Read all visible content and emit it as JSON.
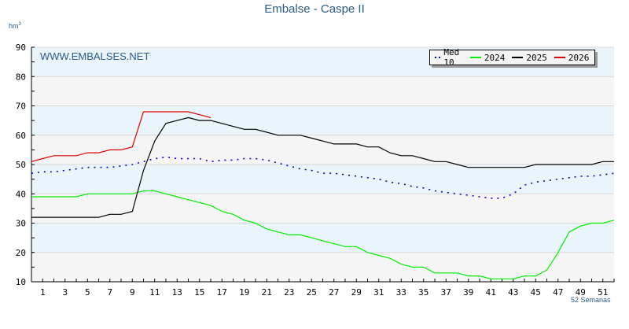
{
  "header": {
    "title": "Embalse - Caspe II",
    "unit_label": "hm",
    "unit_sup": "3"
  },
  "watermark": "WWW.EMBALSES.NET",
  "x_axis_label": "52 Semanas",
  "legend": {
    "items": [
      {
        "label": "Med 10",
        "color": "#0000cc",
        "style": "dotted"
      },
      {
        "label": "2024",
        "color": "#00ee00",
        "style": "solid"
      },
      {
        "label": "2025",
        "color": "#000000",
        "style": "solid"
      },
      {
        "label": "2026",
        "color": "#dd0000",
        "style": "solid"
      }
    ]
  },
  "colors": {
    "band_light_blue": "#e9f4fb",
    "band_light_gray": "#f5f5f5",
    "gridline": "#d8d8d8",
    "title_text": "#2a5b84"
  },
  "chart_data": {
    "type": "line",
    "title": "Embalse - Caspe II",
    "xlabel": "52 Semanas",
    "ylabel": "hm3",
    "ylim": [
      10,
      90
    ],
    "xlim": [
      0,
      52
    ],
    "yticks": [
      10,
      20,
      30,
      40,
      50,
      60,
      70,
      80,
      90
    ],
    "xticks": [
      1,
      3,
      5,
      7,
      9,
      11,
      13,
      15,
      17,
      19,
      21,
      23,
      25,
      27,
      29,
      31,
      33,
      35,
      37,
      39,
      41,
      43,
      45,
      47,
      49,
      51
    ],
    "grid": true,
    "legend_position": "top-right",
    "x": [
      0,
      1,
      2,
      3,
      4,
      5,
      6,
      7,
      8,
      9,
      10,
      11,
      12,
      13,
      14,
      15,
      16,
      17,
      18,
      19,
      20,
      21,
      22,
      23,
      24,
      25,
      26,
      27,
      28,
      29,
      30,
      31,
      32,
      33,
      34,
      35,
      36,
      37,
      38,
      39,
      40,
      41,
      42,
      43,
      44,
      45,
      46,
      47,
      48,
      49,
      50,
      51,
      52
    ],
    "series": [
      {
        "name": "Med 10",
        "color": "#0000cc",
        "style": "dotted",
        "values": [
          47,
          47.5,
          47.5,
          48,
          48.5,
          49,
          49,
          49,
          49.5,
          50,
          51,
          52,
          52.5,
          52,
          52,
          52,
          51,
          51.5,
          51.5,
          52,
          52,
          51.5,
          50.5,
          49.5,
          48.5,
          48,
          47,
          47,
          46.5,
          46,
          45.5,
          45,
          44,
          43.5,
          42.5,
          42,
          41,
          40.5,
          40,
          39.5,
          39,
          38.5,
          38.5,
          40,
          43,
          44,
          44.5,
          45,
          45.5,
          46,
          46,
          46.5,
          47
        ]
      },
      {
        "name": "2024",
        "color": "#00ee00",
        "style": "solid",
        "values": [
          39,
          39,
          39,
          39,
          39,
          40,
          40,
          40,
          40,
          40,
          41,
          41,
          40,
          39,
          38,
          37,
          36,
          34,
          33,
          31,
          30,
          28,
          27,
          26,
          26,
          25,
          24,
          23,
          22,
          22,
          20,
          19,
          18,
          16,
          15,
          15,
          13,
          13,
          13,
          12,
          12,
          11,
          11,
          11,
          12,
          12,
          14,
          20,
          27,
          29,
          30,
          30,
          31
        ]
      },
      {
        "name": "2025",
        "color": "#000000",
        "style": "solid",
        "values": [
          32,
          32,
          32,
          32,
          32,
          32,
          32,
          33,
          33,
          34,
          48,
          58,
          64,
          65,
          66,
          65,
          65,
          64,
          63,
          62,
          62,
          61,
          60,
          60,
          60,
          59,
          58,
          57,
          57,
          57,
          56,
          56,
          54,
          53,
          53,
          52,
          51,
          51,
          50,
          49,
          49,
          49,
          49,
          49,
          49,
          50,
          50,
          50,
          50,
          50,
          50,
          51,
          51
        ]
      },
      {
        "name": "2026",
        "color": "#dd0000",
        "style": "solid",
        "values": [
          51,
          52,
          53,
          53,
          53,
          54,
          54,
          55,
          55,
          56,
          68,
          68,
          68,
          68,
          68,
          67,
          66
        ]
      }
    ]
  }
}
